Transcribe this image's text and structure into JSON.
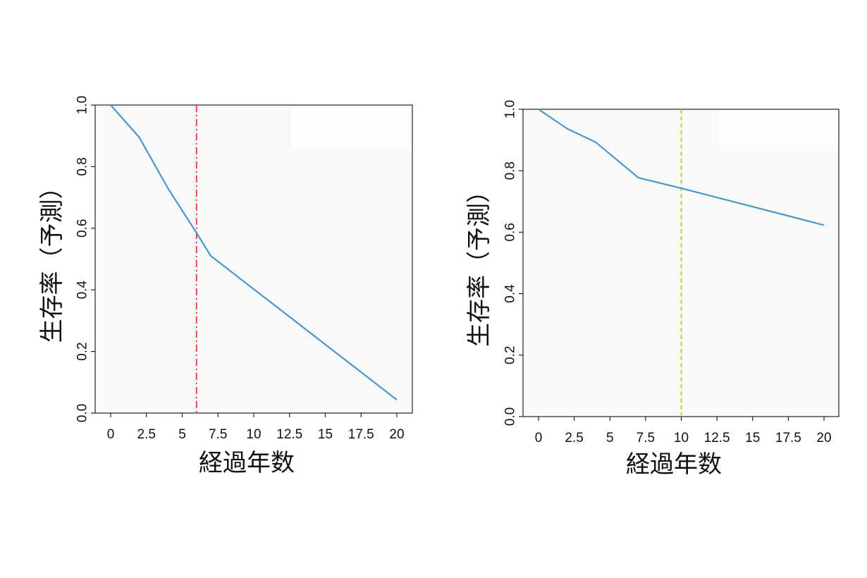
{
  "chart_data": [
    {
      "type": "line",
      "xlabel": "経過年数",
      "ylabel": "生存率（予測）",
      "xlim": [
        0,
        20
      ],
      "ylim": [
        0,
        1
      ],
      "xticks": [
        0,
        2.5,
        5,
        7.5,
        10,
        12.5,
        15,
        17.5,
        20
      ],
      "xtick_labels": [
        "0",
        "2.5",
        "5",
        "7.5",
        "10",
        "12.5",
        "15",
        "17.5",
        "20"
      ],
      "yticks": [
        0,
        0.2,
        0.4,
        0.6,
        0.8,
        1.0
      ],
      "ytick_labels": [
        "0.0",
        "0.2",
        "0.4",
        "0.6",
        "0.8",
        "1.0"
      ],
      "grid": false,
      "series": [
        {
          "color": "#4a98c9",
          "x": [
            0,
            2,
            4,
            6,
            7,
            20
          ],
          "y": [
            1.0,
            0.895,
            0.73,
            0.585,
            0.51,
            0.043
          ]
        }
      ],
      "reference_line": {
        "x": 6,
        "color": "#e0393a",
        "style": "dashdot"
      }
    },
    {
      "type": "line",
      "xlabel": "経過年数",
      "ylabel": "生存率（予測）",
      "xlim": [
        0,
        20
      ],
      "ylim": [
        0,
        1
      ],
      "xticks": [
        0,
        2.5,
        5,
        7.5,
        10,
        12.5,
        15,
        17.5,
        20
      ],
      "xtick_labels": [
        "0",
        "2.5",
        "5",
        "7.5",
        "10",
        "12.5",
        "15",
        "17.5",
        "20"
      ],
      "yticks": [
        0,
        0.2,
        0.4,
        0.6,
        0.8,
        1.0
      ],
      "ytick_labels": [
        "0.0",
        "0.2",
        "0.4",
        "0.6",
        "0.8",
        "1.0"
      ],
      "grid": false,
      "series": [
        {
          "color": "#4a98c9",
          "x": [
            0,
            2,
            4,
            7,
            10,
            20
          ],
          "y": [
            1.0,
            0.937,
            0.893,
            0.777,
            0.743,
            0.623
          ]
        }
      ],
      "reference_line": {
        "x": 10,
        "color": "#d4c418",
        "style": "dashed"
      }
    }
  ]
}
